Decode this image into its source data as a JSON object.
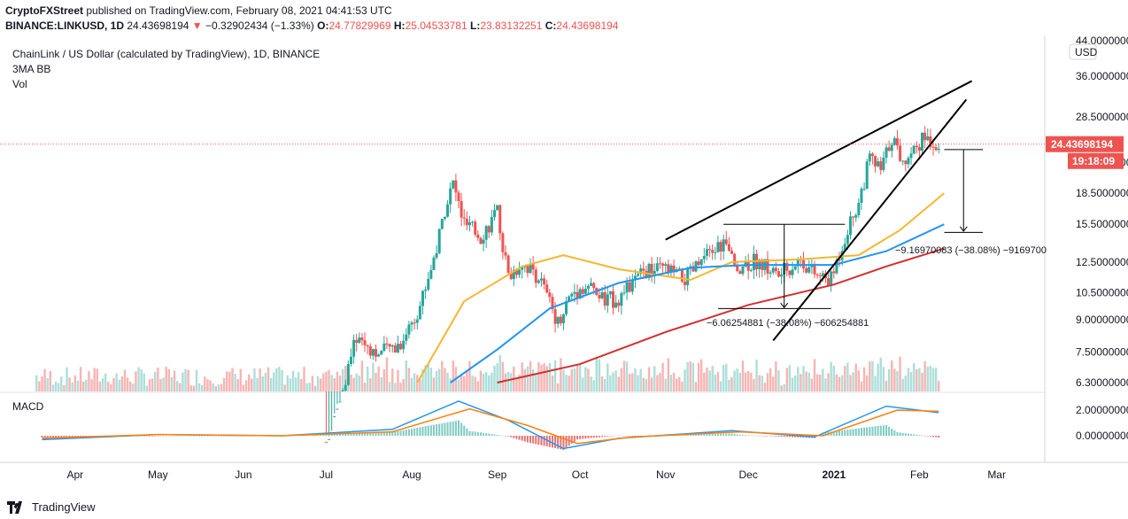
{
  "header": {
    "publisher": "CryptoFXStreet",
    "published_text": "published on TradingView.com, February 08, 2021 04:41:53 UTC",
    "symbol": "BINANCE:LINKUSD, 1D",
    "last": "24.43698194",
    "change": "−0.32902434 (−1.33%)",
    "o_label": "O:",
    "o": "24.77829969",
    "h_label": "H:",
    "h": "25.04533781",
    "l_label": "L:",
    "l": "23.83132251",
    "c_label": "C:",
    "c": "24.43698194"
  },
  "legend": {
    "title": "ChainLink / US Dollar (calculated by TradingView), 1D, BINANCE",
    "ind1": "3MA BB",
    "ind2": "Vol"
  },
  "macd_label": "MACD",
  "footer": {
    "brand": "TradingView"
  },
  "colors": {
    "up": "#26a69a",
    "down": "#ef5350",
    "ma50": "#f5b731",
    "ma100": "#2196f3",
    "ma200": "#d32f2f",
    "macd": "#2196f3",
    "signal": "#ff7f0e",
    "trend": "#000000"
  },
  "chart_data": [
    {
      "type": "candlestick",
      "title": "ChainLink / US Dollar (calculated by TradingView), 1D, BINANCE",
      "currency_label": "USD",
      "scale": "log",
      "y_ticks": [
        "44.00000000",
        "36.00000000",
        "28.50000000",
        "22.00000000",
        "18.50000000",
        "15.50000000",
        "12.50000000",
        "10.50000000",
        "9.00000000",
        "7.50000000",
        "6.30000000"
      ],
      "x_ticks": [
        "Apr",
        "May",
        "Jun",
        "Jul",
        "Aug",
        "Sep",
        "Oct",
        "Nov",
        "Dec",
        "2021",
        "Feb",
        "Mar"
      ],
      "last_price_label": "24.43698194",
      "countdown_label": "19:18:09",
      "price_path": [
        [
          "2020-07-01",
          4.5
        ],
        [
          "2020-07-07",
          6.0
        ],
        [
          "2020-07-12",
          8.2
        ],
        [
          "2020-07-20",
          7.4
        ],
        [
          "2020-07-28",
          7.9
        ],
        [
          "2020-08-04",
          9.8
        ],
        [
          "2020-08-10",
          13.5
        ],
        [
          "2020-08-13",
          17.0
        ],
        [
          "2020-08-16",
          19.5
        ],
        [
          "2020-08-20",
          15.5
        ],
        [
          "2020-08-26",
          14.5
        ],
        [
          "2020-09-01",
          16.5
        ],
        [
          "2020-09-05",
          11.5
        ],
        [
          "2020-09-10",
          12.5
        ],
        [
          "2020-09-16",
          11.5
        ],
        [
          "2020-09-23",
          8.9
        ],
        [
          "2020-09-28",
          10.5
        ],
        [
          "2020-10-04",
          10.9
        ],
        [
          "2020-10-10",
          10.0
        ],
        [
          "2020-10-16",
          10.3
        ],
        [
          "2020-10-24",
          11.8
        ],
        [
          "2020-11-01",
          12.0
        ],
        [
          "2020-11-08",
          11.3
        ],
        [
          "2020-11-14",
          12.5
        ],
        [
          "2020-11-22",
          14.0
        ],
        [
          "2020-11-26",
          12.2
        ],
        [
          "2020-12-04",
          12.6
        ],
        [
          "2020-12-12",
          11.6
        ],
        [
          "2020-12-20",
          12.7
        ],
        [
          "2020-12-26",
          11.5
        ],
        [
          "2020-12-31",
          11.3
        ],
        [
          "2021-01-05",
          14.5
        ],
        [
          "2021-01-10",
          17.6
        ],
        [
          "2021-01-14",
          22.5
        ],
        [
          "2021-01-18",
          21.0
        ],
        [
          "2021-01-22",
          25.5
        ],
        [
          "2021-01-26",
          22.0
        ],
        [
          "2021-01-30",
          24.0
        ],
        [
          "2021-02-03",
          25.5
        ],
        [
          "2021-02-08",
          24.44
        ]
      ],
      "moving_averages": [
        {
          "name": "50",
          "points": [
            [
              "2020-08-03",
              6.3
            ],
            [
              "2020-08-20",
              10.0
            ],
            [
              "2020-09-10",
              12.2
            ],
            [
              "2020-09-25",
              13.0
            ],
            [
              "2020-10-15",
              12.0
            ],
            [
              "2020-11-10",
              11.3
            ],
            [
              "2020-11-25",
              12.5
            ],
            [
              "2020-12-20",
              12.7
            ],
            [
              "2021-01-10",
              13.0
            ],
            [
              "2021-01-25",
              15.0
            ],
            [
              "2021-02-10",
              18.5
            ]
          ]
        },
        {
          "name": "100",
          "points": [
            [
              "2020-08-15",
              6.3
            ],
            [
              "2020-09-01",
              7.6
            ],
            [
              "2020-09-20",
              9.6
            ],
            [
              "2020-10-15",
              11.1
            ],
            [
              "2020-11-10",
              12.1
            ],
            [
              "2020-12-01",
              12.3
            ],
            [
              "2021-01-01",
              12.3
            ],
            [
              "2021-01-20",
              13.3
            ],
            [
              "2021-02-10",
              15.5
            ]
          ]
        },
        {
          "name": "200",
          "points": [
            [
              "2020-09-01",
              6.3
            ],
            [
              "2020-10-01",
              7.0
            ],
            [
              "2020-11-01",
              8.4
            ],
            [
              "2020-12-01",
              9.8
            ],
            [
              "2021-01-01",
              11.0
            ],
            [
              "2021-01-20",
              12.2
            ],
            [
              "2021-02-10",
              13.5
            ]
          ]
        }
      ],
      "annotations": [
        "−6.06254881 (−38.08%) −606254881",
        "−9.16970083 (−38.08%) −9169700"
      ]
    },
    {
      "type": "line",
      "title": "MACD",
      "y_ticks": [
        "2.00000000",
        "0.00000000"
      ],
      "series": [
        {
          "name": "MACD",
          "points": [
            [
              "2020-03-20",
              -0.3
            ],
            [
              "2020-05-01",
              0.1
            ],
            [
              "2020-06-15",
              0.0
            ],
            [
              "2020-07-25",
              0.5
            ],
            [
              "2020-08-18",
              2.7
            ],
            [
              "2020-09-05",
              1.2
            ],
            [
              "2020-09-25",
              -1.0
            ],
            [
              "2020-10-15",
              -0.2
            ],
            [
              "2020-11-25",
              0.4
            ],
            [
              "2020-12-25",
              -0.1
            ],
            [
              "2021-01-20",
              2.3
            ],
            [
              "2021-02-08",
              1.8
            ]
          ]
        },
        {
          "name": "Signal",
          "points": [
            [
              "2020-03-20",
              -0.2
            ],
            [
              "2020-05-01",
              0.1
            ],
            [
              "2020-06-15",
              0.0
            ],
            [
              "2020-07-25",
              0.3
            ],
            [
              "2020-08-22",
              2.1
            ],
            [
              "2020-09-12",
              0.8
            ],
            [
              "2020-09-30",
              -0.6
            ],
            [
              "2020-10-20",
              -0.1
            ],
            [
              "2020-11-28",
              0.3
            ],
            [
              "2020-12-28",
              0.0
            ],
            [
              "2021-01-24",
              2.0
            ],
            [
              "2021-02-08",
              1.9
            ]
          ]
        }
      ]
    }
  ]
}
